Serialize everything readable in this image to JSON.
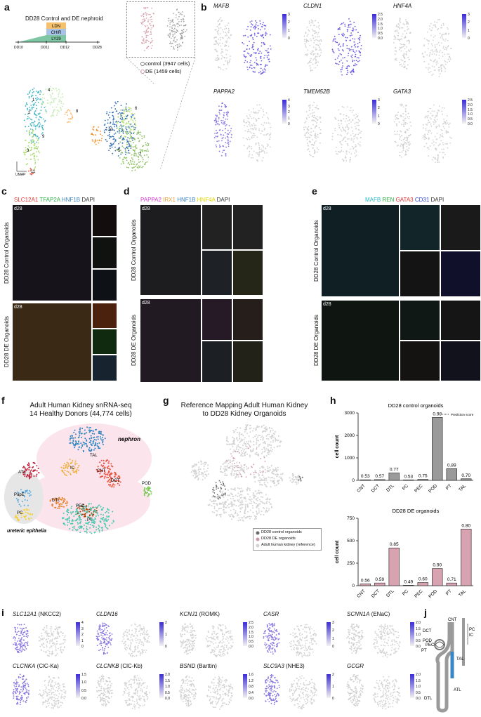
{
  "panel_letters": {
    "a": "a",
    "b": "b",
    "c": "c",
    "d": "d",
    "e": "e",
    "f": "f",
    "g": "g",
    "h": "h",
    "i": "i",
    "j": "j"
  },
  "panel_a": {
    "title": "DD28 Control and DE nephroid",
    "protocol": [
      "LDN",
      "CHIR",
      "LY29"
    ],
    "days": [
      "DD10",
      "DD11",
      "DD12",
      "DD28"
    ],
    "legend": [
      "control (3947 cells)",
      "DE (1459 cells)"
    ],
    "axis_label": "UMAP",
    "clusters": [
      "1",
      "2",
      "3",
      "4",
      "5",
      "6",
      "7",
      "8",
      "9",
      "10",
      "11"
    ],
    "colors": {
      "control": "#9a9a9a",
      "de": "#d89aa8"
    }
  },
  "panel_b": {
    "genes": [
      "MAFB",
      "CLDN1",
      "HNF4A",
      "PAPPA2",
      "TMEM52B",
      "GATA3"
    ],
    "scales": [
      [
        "3",
        "2",
        "1",
        "0"
      ],
      [
        "2.5",
        "2.0",
        "1.5",
        "1.0",
        "0.5",
        "0.0"
      ],
      [
        "3",
        "2",
        "1",
        "0"
      ],
      [
        "4",
        "3",
        "2",
        "1",
        "0"
      ],
      [
        "3",
        "2",
        "1",
        "0"
      ],
      [
        "2.5",
        "2.0",
        "1.5",
        "1.0",
        "0.5",
        "0.0"
      ]
    ]
  },
  "panel_c": {
    "channels": [
      {
        "text": "SLC12A1",
        "color": "#e03131"
      },
      {
        "text": "TFAP2A",
        "color": "#2fb344"
      },
      {
        "text": "HNF1B",
        "color": "#3b82c4"
      },
      {
        "text": "DAPI",
        "color": "#333333"
      }
    ],
    "rows": [
      "DD28 Control Organoids",
      "DD28 DE Organoids"
    ],
    "day": "d28"
  },
  "panel_d": {
    "channels": [
      {
        "text": "PAPPA2",
        "color": "#d63ad6"
      },
      {
        "text": "IRX1",
        "color": "#e8a13a"
      },
      {
        "text": "HNF1B",
        "color": "#3b82c4"
      },
      {
        "text": "HNF4A",
        "color": "#e6d800"
      },
      {
        "text": "DAPI",
        "color": "#333333"
      }
    ],
    "rows": [
      "DD28 Control Organoids",
      "DD28 DE Organoids"
    ],
    "day": "d28"
  },
  "panel_e": {
    "channels": [
      {
        "text": "MAFB",
        "color": "#2ab7ca"
      },
      {
        "text": "REN",
        "color": "#2fb344"
      },
      {
        "text": "GATA3",
        "color": "#e03131"
      },
      {
        "text": "CD31",
        "color": "#3344cc"
      },
      {
        "text": "DAPI",
        "color": "#333333"
      }
    ],
    "rows": [
      "DD28 Control Organoids",
      "DD28 DE Organoids"
    ],
    "day": "d28"
  },
  "panel_f": {
    "title_line1": "Adult Human Kidney snRNA-seq",
    "title_line2": "14 Healthy Donors (44,774 cells)",
    "labels": [
      "nephron",
      "TAL",
      "IC",
      "ATL",
      "CNT",
      "DCT",
      "POD",
      "DTL",
      "PapE",
      "PC",
      "PEC",
      "PT",
      "ureteric epithelia"
    ],
    "colors": {
      "TAL": "#2e86c1",
      "IC": "#f0b040",
      "ATL": "#c0203c",
      "CNT": "#e74c3c",
      "DCT": "#e8553a",
      "POD": "#78c850",
      "DTL": "#e67e22",
      "PapE": "#5dade2",
      "PC": "#f4d03f",
      "PEC": "#a04000",
      "PT": "#48c9b0"
    }
  },
  "panel_g": {
    "title_line1": "Reference Mapping Adult Human Kidney",
    "title_line2": "to DD28 Kidney Organoids",
    "legend": [
      "DD28 control organoids",
      "DD28 DE organoids",
      "Adult human kidney (reference)"
    ],
    "legend_colors": [
      "#6b6b6b",
      "#cf9aa6",
      "#d3d3d3"
    ]
  },
  "panel_h": {
    "prediction_label": "Prediction score",
    "ylabel": "cell count"
  },
  "chart_data": [
    {
      "type": "bar",
      "title": "DD28 control organoids",
      "categories": [
        "CNT",
        "DCT",
        "DTL",
        "PC",
        "PEC",
        "POD",
        "PT",
        "TAL"
      ],
      "values": [
        25,
        35,
        330,
        5,
        45,
        2800,
        520,
        70
      ],
      "prediction_scores": [
        "0.53",
        "0.57",
        "0.77",
        "0.53",
        "0.75",
        "0.98",
        "0.89",
        "0.70"
      ],
      "ylabel": "cell count",
      "ylim": [
        0,
        3000
      ],
      "yticks": [
        "0",
        "1000",
        "2000",
        "3000"
      ],
      "color": "#9a9a9a"
    },
    {
      "type": "bar",
      "title": "DD28 DE organoids",
      "categories": [
        "CNT",
        "DCT",
        "DTL",
        "PC",
        "PEC",
        "POD",
        "PT",
        "TAL"
      ],
      "values": [
        20,
        30,
        420,
        5,
        35,
        190,
        30,
        630
      ],
      "prediction_scores": [
        "0.56",
        "0.59",
        "0.85",
        "0.49",
        "0.60",
        "0.90",
        "0.71",
        "0.80"
      ],
      "ylabel": "cell count",
      "ylim": [
        0,
        750
      ],
      "yticks": [
        "0",
        "250",
        "500",
        "750"
      ],
      "color": "#d8a3b0"
    }
  ],
  "panel_i": {
    "genes": [
      {
        "g": "SLC12A1",
        "p": "(NKCC2)"
      },
      {
        "g": "CLDN16",
        "p": ""
      },
      {
        "g": "KCNJ1",
        "p": "(ROMK)"
      },
      {
        "g": "CASR",
        "p": ""
      },
      {
        "g": "SCNN1A",
        "p": "(ENaC)"
      },
      {
        "g": "CLCNKA",
        "p": "(ClC-Ka)"
      },
      {
        "g": "CLCNKB",
        "p": "(ClC-Kb)"
      },
      {
        "g": "BSND",
        "p": "(Barttin)"
      },
      {
        "g": "SLC9A3",
        "p": "(NHE3)"
      },
      {
        "g": "GCGR",
        "p": ""
      }
    ],
    "scales": [
      [
        "4",
        "3",
        "2",
        "1",
        "0"
      ],
      [
        "2",
        "1",
        "0"
      ],
      [
        "2.5",
        "2.0",
        "1.5",
        "1.0",
        "0.5",
        "0.0"
      ],
      [
        "3",
        "2",
        "1",
        "0"
      ],
      [
        "2.0",
        "1.5",
        "1.0",
        "0.5",
        "0.0"
      ],
      [
        "1.5",
        "1.0",
        "0.5",
        "0.0"
      ],
      [
        "2.0",
        "1.5",
        "1.0",
        "0.5",
        "0.0"
      ],
      [
        "1.6",
        "1.2",
        "0.8",
        "0.4",
        "0.0"
      ],
      [
        "2",
        "1",
        "0"
      ],
      [
        "2.0",
        "1.5",
        "1.0",
        "0.5",
        "0.0"
      ]
    ]
  },
  "panel_j": {
    "labels": [
      "CNT",
      "DCT",
      "PC",
      "IC",
      "POD",
      "PEC",
      "PT",
      "TAL",
      "ATL",
      "DTL"
    ]
  }
}
